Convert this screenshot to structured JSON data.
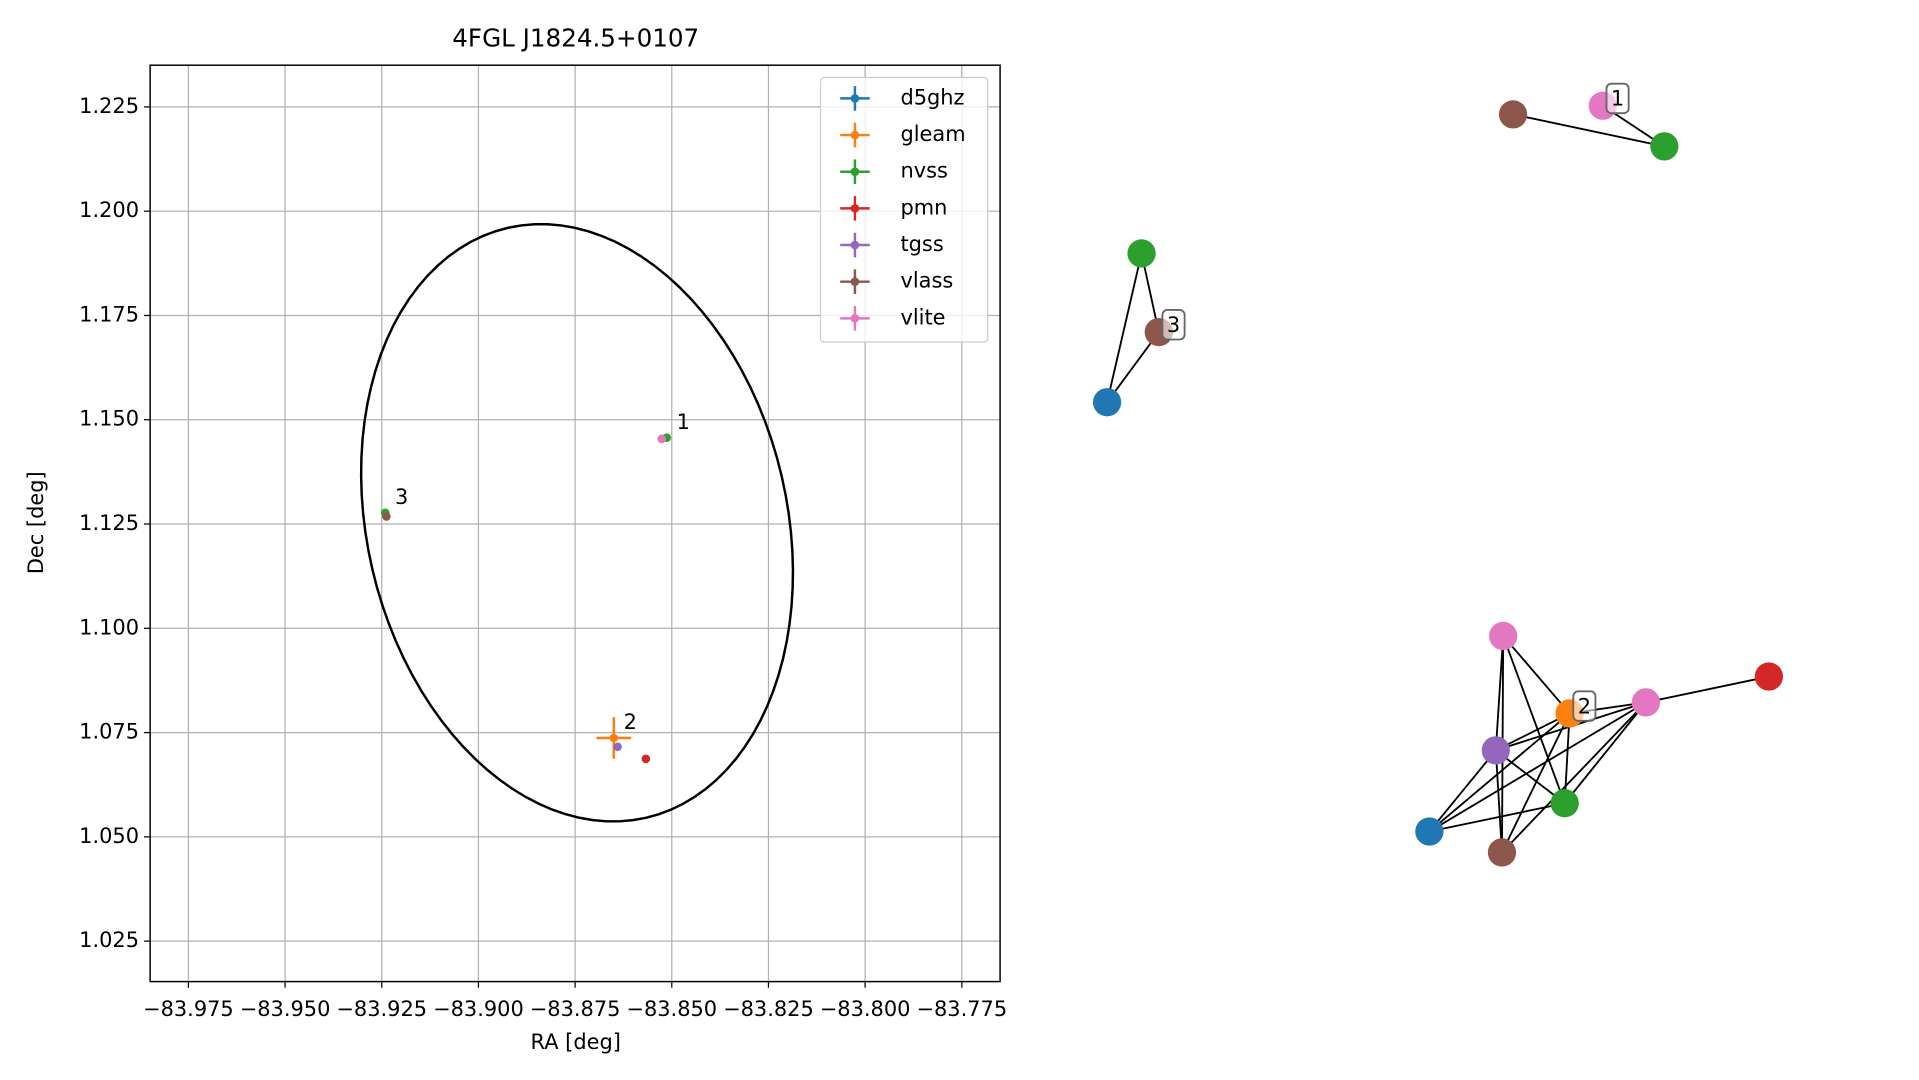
{
  "chart_data": {
    "type": "scatter",
    "title": "4FGL J1824.5+0107",
    "xlabel": "RA [deg]",
    "ylabel": "Dec [deg]",
    "xlim": [
      -83.9849,
      -83.7651
    ],
    "ylim": [
      1.0153,
      1.235
    ],
    "xticks": [
      {
        "value": -83.975,
        "label": "−83.975"
      },
      {
        "value": -83.95,
        "label": "−83.950"
      },
      {
        "value": -83.925,
        "label": "−83.925"
      },
      {
        "value": -83.9,
        "label": "−83.900"
      },
      {
        "value": -83.875,
        "label": "−83.875"
      },
      {
        "value": -83.85,
        "label": "−83.850"
      },
      {
        "value": -83.825,
        "label": "−83.825"
      },
      {
        "value": -83.8,
        "label": "−83.800"
      },
      {
        "value": -83.775,
        "label": "−83.775"
      }
    ],
    "yticks": [
      1.025,
      {
        "value": 1.05,
        "label": "1.050"
      },
      1.075,
      {
        "value": 1.1,
        "label": "1.100"
      },
      1.125,
      {
        "value": 1.15,
        "label": "1.150"
      },
      1.175,
      {
        "value": 1.2,
        "label": "1.200"
      },
      1.225
    ],
    "grid": true,
    "legend": "upper right",
    "series": [
      {
        "name": "d5ghz",
        "color": "#1f77b4",
        "x": [],
        "y": []
      },
      {
        "name": "gleam",
        "color": "#ff7f0e",
        "x": [
          -83.865
        ],
        "y": [
          1.0737
        ],
        "xerr": [
          0.0045
        ],
        "yerr": [
          0.005
        ]
      },
      {
        "name": "nvss",
        "color": "#2ca02c",
        "x": [
          -83.8513,
          -83.9241
        ],
        "y": [
          1.1457,
          1.1277
        ]
      },
      {
        "name": "pmn",
        "color": "#d62728",
        "x": [
          -83.8567
        ],
        "y": [
          1.0687
        ]
      },
      {
        "name": "tgss",
        "color": "#9467bd",
        "x": [
          -83.864
        ],
        "y": [
          1.0716
        ]
      },
      {
        "name": "vlass",
        "color": "#8c564b",
        "x": [
          -83.9238
        ],
        "y": [
          1.1268
        ]
      },
      {
        "name": "vlite",
        "color": "#e377c2",
        "x": [
          -83.8526
        ],
        "y": [
          1.1454
        ]
      }
    ],
    "ellipse": {
      "center": [
        -83.8745,
        1.1253
      ],
      "semi_major": 0.073,
      "semi_minor": 0.054,
      "angle": -16.8,
      "color": "#000000"
    },
    "annotations": [
      {
        "text": "1",
        "x": -83.8513,
        "y": 1.1457
      },
      {
        "text": "2",
        "x": -83.865,
        "y": 1.0737
      },
      {
        "text": "3",
        "x": -83.9241,
        "y": 1.1277
      }
    ]
  },
  "network": {
    "nodes": [
      {
        "series": 5
      },
      {
        "series": 6,
        "label": "1"
      },
      {
        "series": 2
      },
      {
        "series": 2
      },
      {
        "series": 5,
        "label": "3"
      },
      {
        "series": 0
      },
      {
        "series": 6
      },
      {
        "series": 1,
        "label": "2"
      },
      {
        "series": 6
      },
      {
        "series": 3
      },
      {
        "series": 4
      },
      {
        "series": 2
      },
      {
        "series": 0
      },
      {
        "series": 5
      }
    ],
    "edges": [
      [
        0,
        2
      ],
      [
        1,
        2
      ],
      [
        3,
        5
      ],
      [
        3,
        4
      ],
      [
        4,
        5
      ],
      [
        6,
        7
      ],
      [
        6,
        11
      ],
      [
        6,
        13
      ],
      [
        6,
        10
      ],
      [
        7,
        8
      ],
      [
        8,
        9
      ],
      [
        10,
        7
      ],
      [
        10,
        8
      ],
      [
        10,
        11
      ],
      [
        10,
        12
      ],
      [
        10,
        13
      ],
      [
        12,
        7
      ],
      [
        12,
        8
      ],
      [
        12,
        11
      ],
      [
        13,
        7
      ],
      [
        13,
        8
      ],
      [
        11,
        7
      ],
      [
        11,
        8
      ]
    ]
  }
}
